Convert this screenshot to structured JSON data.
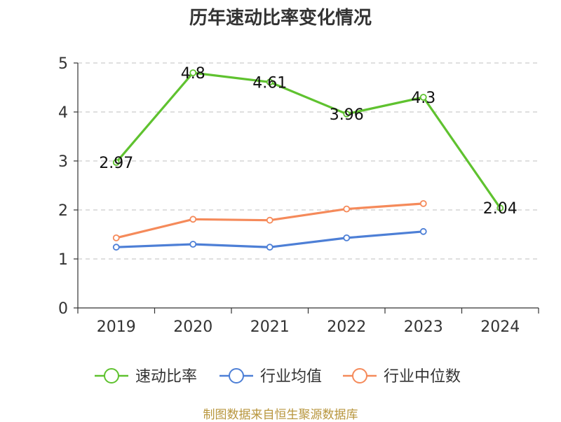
{
  "chart_data": {
    "type": "line",
    "title": "历年速动比率变化情况",
    "categories": [
      "2019",
      "2020",
      "2021",
      "2022",
      "2023",
      "2024"
    ],
    "ylim": [
      0,
      5
    ],
    "yticks": [
      "0",
      "1",
      "2",
      "3",
      "4",
      "5"
    ],
    "grid": true,
    "legend_position": "bottom",
    "series": [
      {
        "name": "速动比率",
        "color": "#5fc22f",
        "values": [
          2.97,
          4.8,
          4.61,
          3.96,
          4.3,
          2.04
        ],
        "labels": [
          "2.97",
          "4.8",
          "4.61",
          "3.96",
          "4.3",
          "2.04"
        ]
      },
      {
        "name": "行业均值",
        "color": "#4d7fd6",
        "values": [
          1.24,
          1.3,
          1.24,
          1.43,
          1.56,
          null
        ]
      },
      {
        "name": "行业中位数",
        "color": "#f58a5a",
        "values": [
          1.43,
          1.81,
          1.79,
          2.02,
          2.13,
          null
        ]
      }
    ]
  },
  "footer": "制图数据来自恒生聚源数据库"
}
